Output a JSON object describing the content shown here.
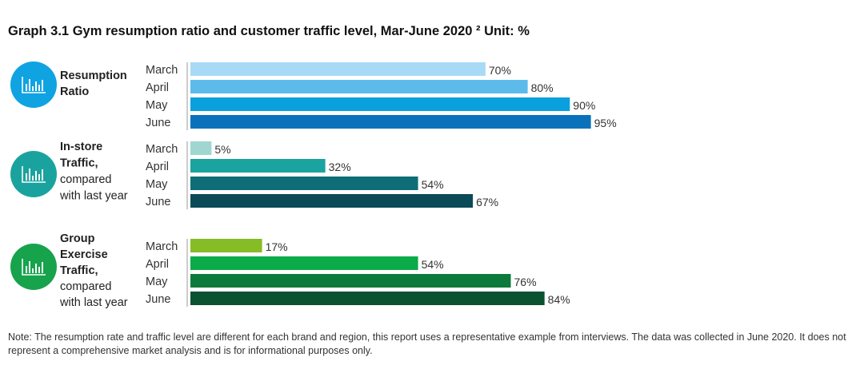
{
  "title": "Graph 3.1 Gym resumption ratio and customer traffic level, Mar-June 2020 ² Unit: %",
  "note": "Note: The resumption rate and traffic level are different for each brand and region, this report uses a representative example from interviews. The data was collected in June 2020. It does not represent a comprehensive market analysis and is for informational purposes only.",
  "chart_data": {
    "type": "bar",
    "orientation": "horizontal",
    "unit": "%",
    "xlim": [
      0,
      100
    ],
    "grid": false,
    "categories": [
      "March",
      "April",
      "May",
      "June"
    ],
    "groups": [
      {
        "label_lines": [
          {
            "text": "Resumption",
            "bold": true
          },
          {
            "text": "Ratio",
            "bold": true
          }
        ],
        "icon": "bar-chart-icon",
        "icon_color": "#0fa3e2",
        "values": [
          70,
          80,
          90,
          95
        ],
        "value_labels": [
          "70%",
          "80%",
          "90%",
          "95%"
        ],
        "colors": [
          "#a9daf5",
          "#5cbbeb",
          "#0aa0de",
          "#0a72ba"
        ]
      },
      {
        "label_lines": [
          {
            "text": "In-store",
            "bold": true
          },
          {
            "text": "Traffic,",
            "bold": true
          },
          {
            "text": "compared",
            "bold": false
          },
          {
            "text": "with last year",
            "bold": false
          }
        ],
        "icon": "bar-chart-icon",
        "icon_color": "#1aa39e",
        "values": [
          5,
          32,
          54,
          67
        ],
        "value_labels": [
          "5%",
          "32%",
          "54%",
          "67%"
        ],
        "colors": [
          "#9fd6d0",
          "#1ba39f",
          "#0e6d76",
          "#0b4a57"
        ]
      },
      {
        "label_lines": [
          {
            "text": "Group",
            "bold": true
          },
          {
            "text": "Exercise",
            "bold": true
          },
          {
            "text": "Traffic,",
            "bold": true
          },
          {
            "text": "compared",
            "bold": false
          },
          {
            "text": "with last year",
            "bold": false
          }
        ],
        "icon": "bar-chart-icon",
        "icon_color": "#16a34c",
        "values": [
          17,
          54,
          76,
          84
        ],
        "value_labels": [
          "17%",
          "54%",
          "76%",
          "84%"
        ],
        "colors": [
          "#86bc25",
          "#0aab48",
          "#0b7a3a",
          "#0a5230"
        ]
      }
    ]
  }
}
